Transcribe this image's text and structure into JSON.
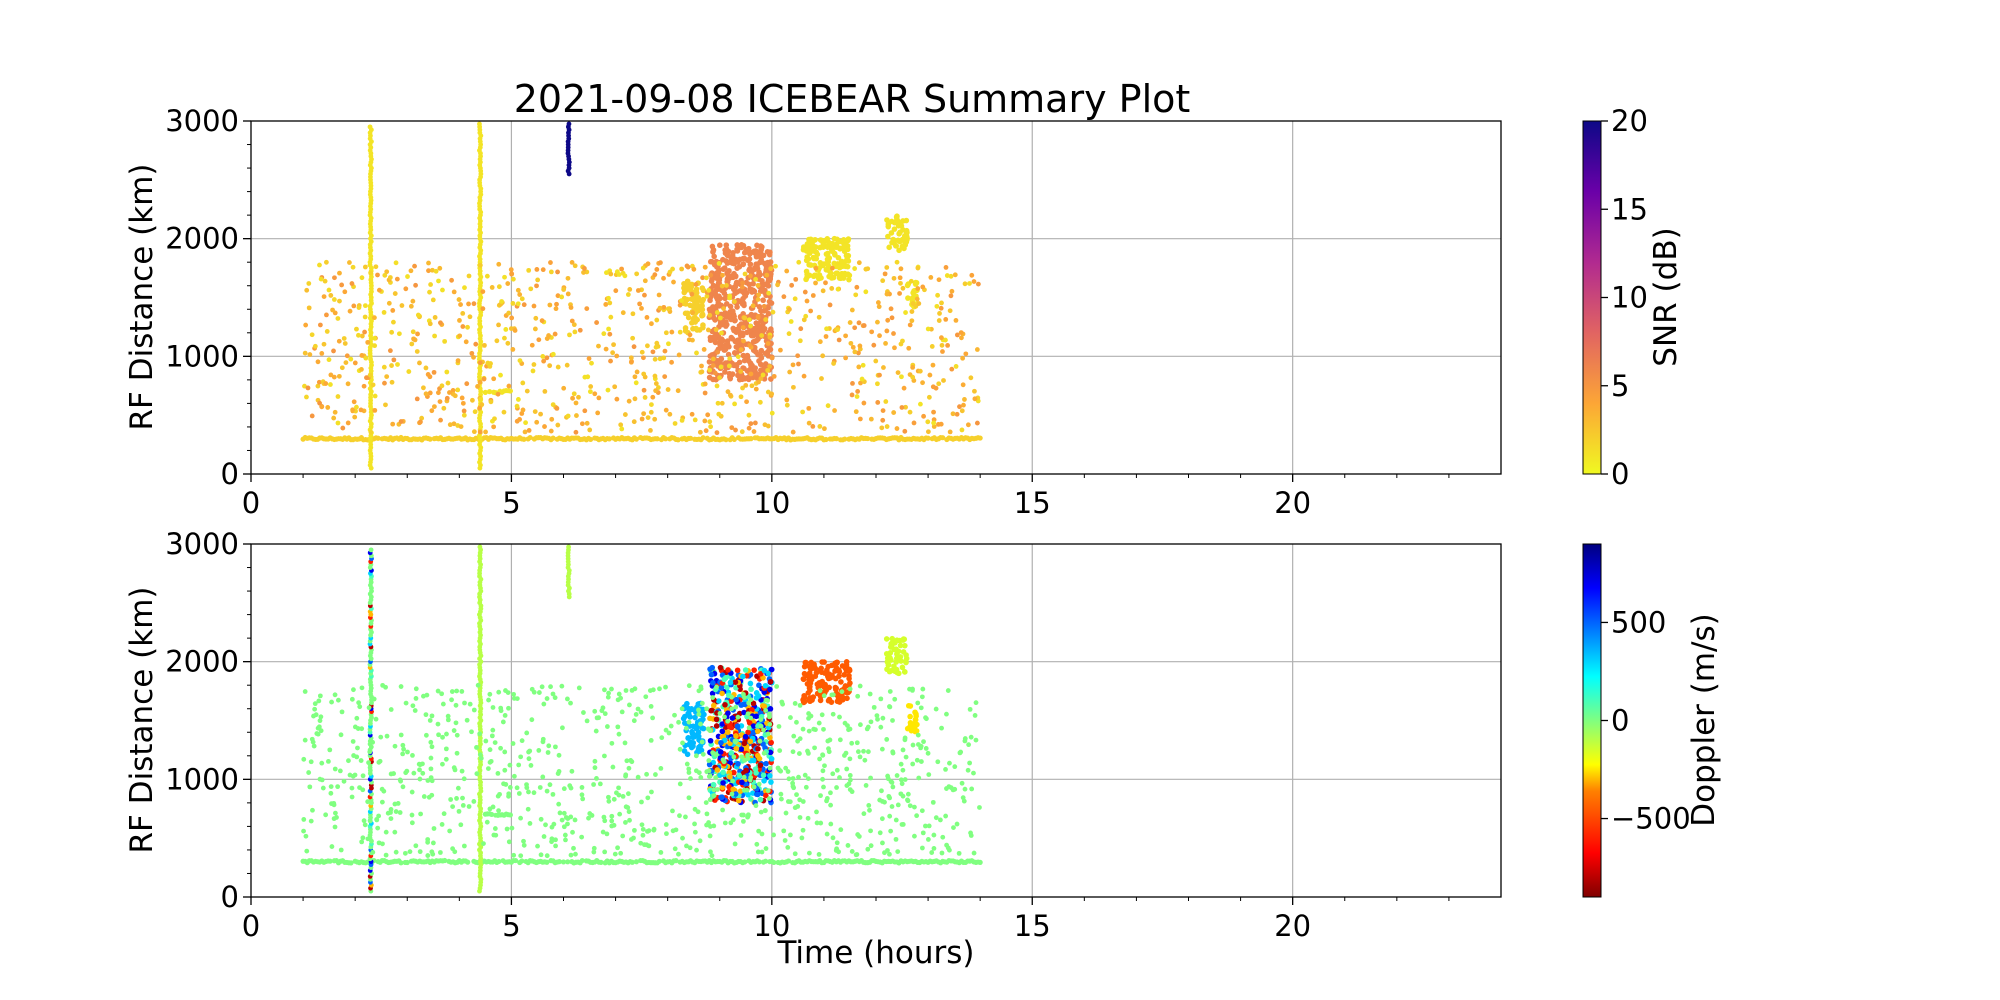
{
  "figure": {
    "title": "2021-09-08 ICEBEAR Summary Plot"
  },
  "chart_data": [
    {
      "type": "scatter",
      "panel": "top",
      "ylabel": "RF Distance (km)",
      "xlabel": "",
      "xlim": [
        0,
        24
      ],
      "ylim": [
        0,
        3000
      ],
      "xticks": [
        "0",
        "5",
        "10",
        "15",
        "20"
      ],
      "yticks": [
        "0",
        "1000",
        "2000",
        "3000"
      ],
      "grid": true,
      "colorbar": {
        "label": "SNR (dB)",
        "range": [
          0,
          20
        ],
        "ticks": [
          "0",
          "5",
          "10",
          "15",
          "20"
        ],
        "colormap": "plasma_r"
      },
      "events": [
        {
          "kind": "band",
          "x": [
            1.0,
            14.0
          ],
          "y": 300,
          "value": 2
        },
        {
          "kind": "column",
          "x": 2.3,
          "y": [
            50,
            2950
          ],
          "value": 1
        },
        {
          "kind": "column",
          "x": 4.4,
          "y": [
            50,
            2980
          ],
          "value": 1
        },
        {
          "kind": "column",
          "x": 6.1,
          "y": [
            2550,
            2980
          ],
          "value": 20
        },
        {
          "kind": "band",
          "x": [
            4.5,
            5.0
          ],
          "y": 700,
          "value": 1
        },
        {
          "kind": "cluster",
          "x": [
            8.3,
            8.7
          ],
          "y": [
            1200,
            1650
          ],
          "value": 2
        },
        {
          "kind": "cluster",
          "x": [
            8.8,
            10.0
          ],
          "y": [
            800,
            1950
          ],
          "value": 6
        },
        {
          "kind": "cluster",
          "x": [
            10.6,
            11.5
          ],
          "y": [
            1650,
            2000
          ],
          "value": 1
        },
        {
          "kind": "cluster",
          "x": [
            12.2,
            12.6
          ],
          "y": [
            1900,
            2200
          ],
          "value": 1
        },
        {
          "kind": "cluster",
          "x": [
            12.6,
            12.8
          ],
          "y": [
            1400,
            1650
          ],
          "value": 1
        },
        {
          "kind": "scattered",
          "x": [
            1.0,
            14.0
          ],
          "y": [
            350,
            1800
          ],
          "value": 3
        }
      ]
    },
    {
      "type": "scatter",
      "panel": "bottom",
      "ylabel": "RF Distance (km)",
      "xlabel": "Time (hours)",
      "xlim": [
        0,
        24
      ],
      "ylim": [
        0,
        3000
      ],
      "xticks": [
        "0",
        "5",
        "10",
        "15",
        "20"
      ],
      "yticks": [
        "0",
        "1000",
        "2000",
        "3000"
      ],
      "grid": true,
      "colorbar": {
        "label": "Doppler (m/s)",
        "range": [
          -900,
          900
        ],
        "ticks": [
          "−500",
          "0",
          "500"
        ],
        "tick_values": [
          -500,
          0,
          500
        ],
        "colormap": "jet_r"
      },
      "events": [
        {
          "kind": "band",
          "x": [
            1.0,
            14.0
          ],
          "y": 300,
          "value": 0
        },
        {
          "kind": "column",
          "x": 2.3,
          "y": [
            50,
            2950
          ],
          "value": "mixed"
        },
        {
          "kind": "column",
          "x": 4.4,
          "y": [
            50,
            2980
          ],
          "value": -100
        },
        {
          "kind": "column",
          "x": 6.1,
          "y": [
            2550,
            2980
          ],
          "value": -100
        },
        {
          "kind": "band",
          "x": [
            4.5,
            5.0
          ],
          "y": 700,
          "value": 0
        },
        {
          "kind": "cluster",
          "x": [
            8.3,
            8.7
          ],
          "y": [
            1200,
            1650
          ],
          "value": 350
        },
        {
          "kind": "cluster",
          "x": [
            8.8,
            10.0
          ],
          "y": [
            800,
            1950
          ],
          "value": "mixed"
        },
        {
          "kind": "cluster",
          "x": [
            10.6,
            11.5
          ],
          "y": [
            1650,
            2000
          ],
          "value": -450
        },
        {
          "kind": "cluster",
          "x": [
            12.2,
            12.6
          ],
          "y": [
            1900,
            2200
          ],
          "value": -150
        },
        {
          "kind": "cluster",
          "x": [
            12.6,
            12.8
          ],
          "y": [
            1400,
            1650
          ],
          "value": -250
        },
        {
          "kind": "scattered",
          "x": [
            1.0,
            14.0
          ],
          "y": [
            350,
            1800
          ],
          "value": 0
        }
      ]
    }
  ]
}
